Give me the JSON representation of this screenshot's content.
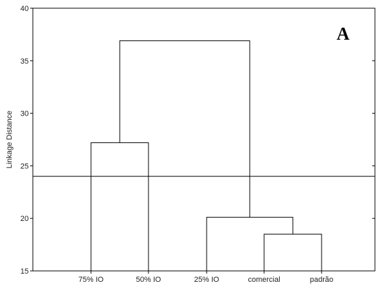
{
  "chart_data": {
    "type": "dendrogram",
    "panel_label": "A",
    "ylabel": "Linkage Distance",
    "xlabel": "",
    "ylim": [
      15,
      40
    ],
    "yticks": [
      15,
      20,
      25,
      30,
      35,
      40
    ],
    "ytick_labels": [
      "15",
      "20",
      "25",
      "30",
      "35",
      "40"
    ],
    "leaves": [
      "75% IO",
      "50% IO",
      "25% IO",
      "comercial",
      "padrão"
    ],
    "merges": [
      {
        "left": "comercial",
        "right": "padrão",
        "height": 18.5
      },
      {
        "left": "75% IO",
        "right": "50% IO",
        "height": 27.2
      },
      {
        "left": "25% IO",
        "right": "comercial + padrão",
        "height": 20.1
      },
      {
        "left": "75% IO + 50% IO",
        "right": "25% IO + comercial + padrão",
        "height": 36.9
      }
    ],
    "cut_line": 24,
    "grid": false
  }
}
